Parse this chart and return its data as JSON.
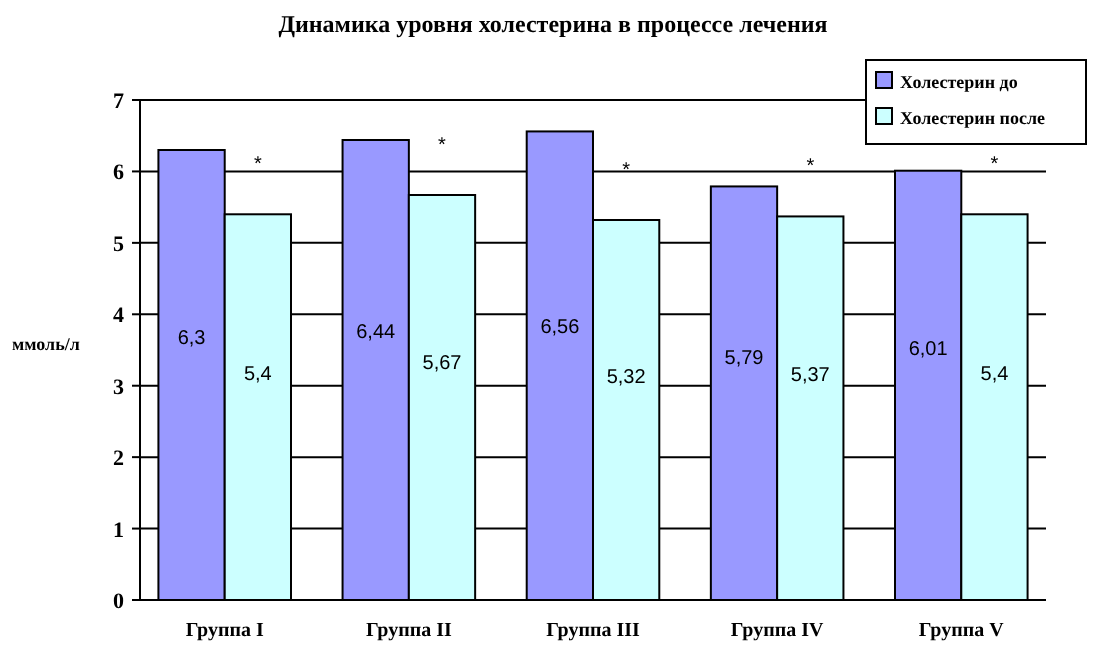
{
  "chart_data": {
    "type": "bar",
    "title": "Динамика уровня холестерина в процессе лечения",
    "ylabel": "ммоль/л",
    "categories": [
      "Группа I",
      "Группа II",
      "Группа III",
      "Группа IV",
      "Группа V"
    ],
    "series": [
      {
        "name": "Холестерин до",
        "color": "#9999ff",
        "values": [
          6.3,
          6.44,
          6.56,
          5.79,
          6.01
        ],
        "value_labels": [
          "6,3",
          "6,44",
          "6,56",
          "5,79",
          "6,01"
        ]
      },
      {
        "name": "Холестерин после",
        "color": "#ccffff",
        "values": [
          5.4,
          5.67,
          5.32,
          5.37,
          5.4
        ],
        "value_labels": [
          "5,4",
          "5,67",
          "5,32",
          "5,37",
          "5,4"
        ]
      }
    ],
    "ylim": [
      0,
      7
    ],
    "yticks": [
      0,
      1,
      2,
      3,
      4,
      5,
      6,
      7
    ],
    "grid": "y",
    "legend": "top right",
    "annotations": [
      {
        "text": "*",
        "x": "Группа I",
        "y": 5.4
      },
      {
        "text": "*",
        "x": "Группа II",
        "y": 5.67
      },
      {
        "text": "*",
        "x": "Группа III",
        "y": 5.32
      },
      {
        "text": "*",
        "x": "Группа IV",
        "y": 5.37
      },
      {
        "text": "*",
        "x": "Группа V",
        "y": 5.4
      }
    ]
  }
}
